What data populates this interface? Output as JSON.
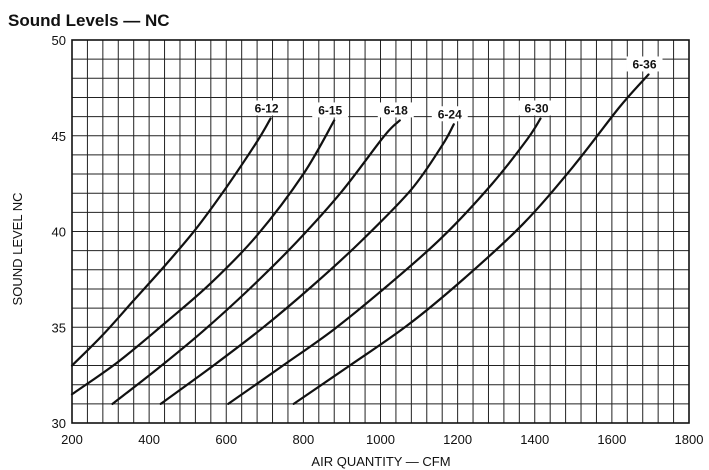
{
  "chart_data": {
    "type": "line",
    "title": "Sound Levels — NC",
    "xlabel": "AIR QUANTITY — CFM",
    "ylabel": "SOUND LEVEL NC",
    "xlim": [
      200,
      1800
    ],
    "ylim": [
      30,
      50
    ],
    "x_ticks": [
      200,
      400,
      600,
      800,
      1000,
      1200,
      1400,
      1600,
      1800
    ],
    "y_ticks": [
      30,
      35,
      40,
      45,
      50
    ],
    "x_tick_labels": [
      "200",
      "400",
      "600",
      "800",
      "1000",
      "1200",
      "1400",
      "1600",
      "1800"
    ],
    "y_tick_labels": [
      "30",
      "35",
      "40",
      "45",
      "50"
    ],
    "grid": true,
    "grid_x_step": 40,
    "grid_y_step": 1,
    "series": [
      {
        "name": "6-12",
        "x": [
          200,
          280,
          360,
          440,
          520,
          600,
          680,
          715
        ],
        "y": [
          33.0,
          34.6,
          36.4,
          38.2,
          40.1,
          42.3,
          44.7,
          45.9
        ]
      },
      {
        "name": "6-15",
        "x": [
          200,
          320,
          440,
          560,
          680,
          800,
          880
        ],
        "y": [
          31.5,
          33.2,
          35.2,
          37.3,
          39.8,
          43.0,
          45.8
        ]
      },
      {
        "name": "6-18",
        "x": [
          305,
          420,
          540,
          660,
          780,
          900,
          1010,
          1050
        ],
        "y": [
          31.0,
          32.8,
          34.8,
          37.0,
          39.4,
          42.1,
          45.0,
          45.8
        ]
      },
      {
        "name": "6-24",
        "x": [
          430,
          560,
          690,
          820,
          950,
          1080,
          1160,
          1190
        ],
        "y": [
          31.0,
          32.9,
          34.9,
          37.1,
          39.5,
          42.2,
          44.5,
          45.6
        ]
      },
      {
        "name": "6-30",
        "x": [
          605,
          740,
          880,
          1020,
          1160,
          1290,
          1380,
          1415
        ],
        "y": [
          31.0,
          32.9,
          34.9,
          37.2,
          39.7,
          42.5,
          44.8,
          45.9
        ]
      },
      {
        "name": "6-36",
        "x": [
          775,
          920,
          1070,
          1220,
          1370,
          1500,
          1620,
          1695
        ],
        "y": [
          31.0,
          33.0,
          35.1,
          37.6,
          40.4,
          43.4,
          46.5,
          48.2
        ]
      }
    ]
  }
}
